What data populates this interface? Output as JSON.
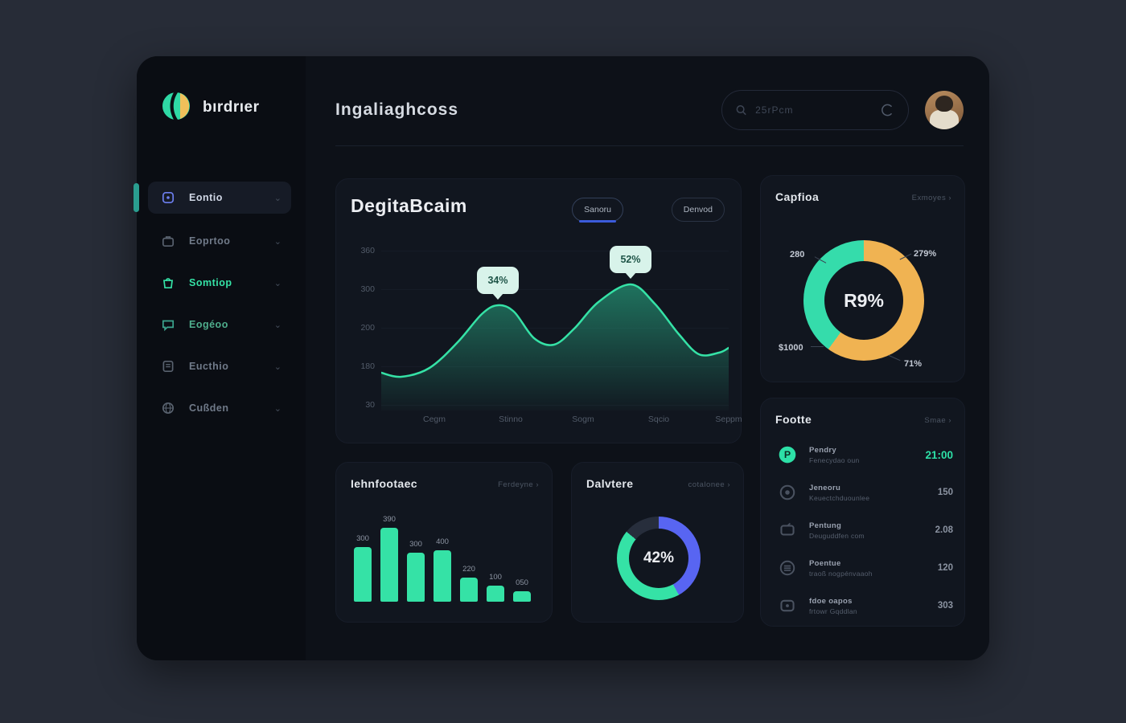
{
  "brand": {
    "name": "bırdrıer"
  },
  "header": {
    "title": "Ingaliaghcoss",
    "search": {
      "placeholder": "25rPcm"
    }
  },
  "sidebar": {
    "items": [
      {
        "label": "Eontio",
        "tone": "blue",
        "active": true,
        "icon": "dashboard-icon"
      },
      {
        "label": "Eoprtoo",
        "tone": "slate",
        "active": false,
        "icon": "briefcase-icon"
      },
      {
        "label": "Somtiop",
        "tone": "green",
        "active": false,
        "icon": "bag-icon"
      },
      {
        "label": "Eogéoo",
        "tone": "teal",
        "active": false,
        "icon": "chat-icon"
      },
      {
        "label": "Eucthio",
        "tone": "slate",
        "active": false,
        "icon": "document-icon"
      },
      {
        "label": "Cußden",
        "tone": "slate",
        "active": false,
        "icon": "globe-icon"
      }
    ]
  },
  "colors": {
    "teal": "#35e2a6",
    "orange": "#f0b352",
    "blue": "#5865f2",
    "accent_underline": "#3b5bdb",
    "tooltip_bg": "#d8f3ea"
  },
  "chart_data": [
    {
      "type": "area",
      "title": "DegitaBcaim",
      "buttons": [
        "Sanoru",
        "Denvod"
      ],
      "active_button": 0,
      "y_ticks": [
        "360",
        "300",
        "200",
        "180",
        "30"
      ],
      "x_ticks": [
        "Cegm",
        "Stinno",
        "Sogm",
        "Sqcio",
        "Seppm"
      ],
      "line_color": "#35e2a6",
      "points": [
        [
          0,
          158
        ],
        [
          25,
          163
        ],
        [
          60,
          152
        ],
        [
          95,
          120
        ],
        [
          125,
          85
        ],
        [
          145,
          74
        ],
        [
          165,
          82
        ],
        [
          190,
          115
        ],
        [
          215,
          123
        ],
        [
          240,
          103
        ],
        [
          270,
          70
        ],
        [
          310,
          48
        ],
        [
          340,
          72
        ],
        [
          370,
          110
        ],
        [
          395,
          135
        ],
        [
          420,
          133
        ],
        [
          432,
          127
        ]
      ],
      "tooltips": [
        {
          "label": "34%",
          "x": 145,
          "y": 74
        },
        {
          "label": "52%",
          "x": 310,
          "y": 48
        }
      ]
    },
    {
      "type": "pie",
      "title": "Capfioa",
      "link": "Exmoyes ›",
      "center_label": "R9%",
      "segments": [
        {
          "value": 60,
          "color": "#f0b352"
        },
        {
          "value": 40,
          "color": "#35dcab"
        }
      ],
      "callouts": {
        "top_left": "280",
        "top_right": "279%",
        "bottom_left": "$1000",
        "bottom_right": "71%"
      }
    },
    {
      "type": "bar",
      "title": "Iehnfootaec",
      "link": "Ferdeyne ›",
      "labels": [
        "300",
        "390",
        "300",
        "400",
        "220",
        "100",
        "050"
      ],
      "values": [
        300,
        390,
        300,
        400,
        220,
        100,
        50
      ],
      "heights": [
        68,
        92,
        61,
        64,
        30,
        20,
        13
      ],
      "bar_color": "#35e2a6"
    },
    {
      "type": "pie",
      "title": "Dalvtere",
      "link": "cotalonee ›",
      "center_label": "42%",
      "segments": [
        {
          "value": 42,
          "color": "#5865f2"
        },
        {
          "value": 44,
          "color": "#35e2a6"
        },
        {
          "value": 14,
          "color": "#272e3c"
        }
      ]
    }
  ],
  "activity": {
    "title": "Footte",
    "link": "Smae ›",
    "rows": [
      {
        "icon": "wallet-icon",
        "title": "Pendry",
        "sub": "Fenecydao oun",
        "value": "21:00",
        "highlight": true
      },
      {
        "icon": "disc-icon",
        "title": "Jeneoru",
        "sub": "Keuectchduounlee",
        "value": "150",
        "highlight": false
      },
      {
        "icon": "monitor-icon",
        "title": "Pentung",
        "sub": "Deuguddfen com",
        "value": "2.08",
        "highlight": false
      },
      {
        "icon": "stack-icon",
        "title": "Poentue",
        "sub": "traoß nogpénvaaoh",
        "value": "120",
        "highlight": false
      },
      {
        "icon": "message-icon",
        "title": "fdoe oapos",
        "sub": "frtowr Gqddlan",
        "value": "303",
        "highlight": false
      }
    ]
  }
}
